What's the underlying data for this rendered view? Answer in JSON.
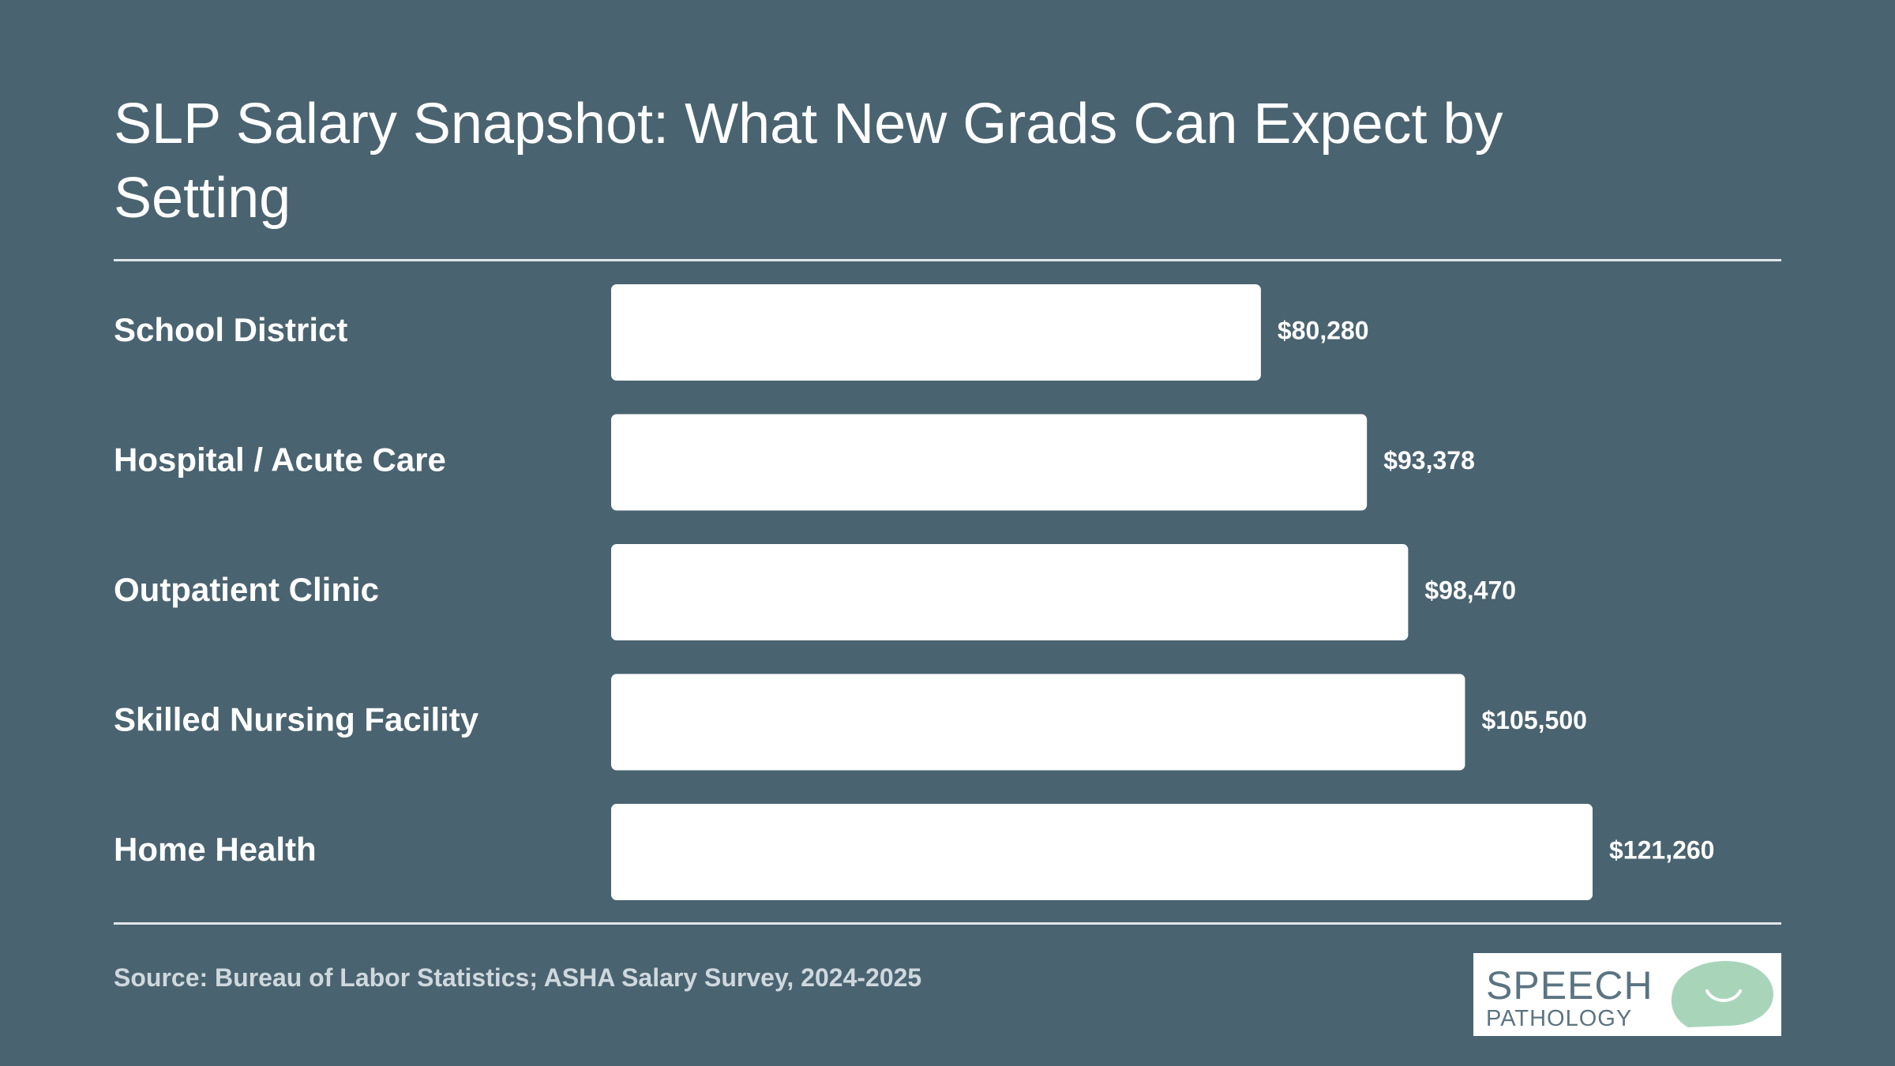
{
  "title": "SLP Salary Snapshot: What New Grads Can Expect by Setting",
  "source": "Source: Bureau of Labor Statistics; ASHA Salary Survey, 2024-2025",
  "logo": {
    "line1": "SPEECH",
    "line2": "PATHOLOGY"
  },
  "colors": {
    "background": "#4a6370",
    "bar": "#ffffff",
    "text": "#ffffff",
    "logo_text": "#5b7482",
    "logo_mark": "#a8d5ba"
  },
  "chart_data": {
    "type": "bar",
    "orientation": "horizontal",
    "categories": [
      "School District",
      "Hospital / Acute Care",
      "Outpatient Clinic",
      "Skilled Nursing Facility",
      "Home Health"
    ],
    "values": [
      80280,
      93378,
      98470,
      105500,
      121260
    ],
    "value_labels": [
      "$80,280",
      "$93,378",
      "$98,470",
      "$105,500",
      "$121,260"
    ],
    "xlim": [
      0,
      121260
    ],
    "grid": false,
    "legend": "none"
  }
}
